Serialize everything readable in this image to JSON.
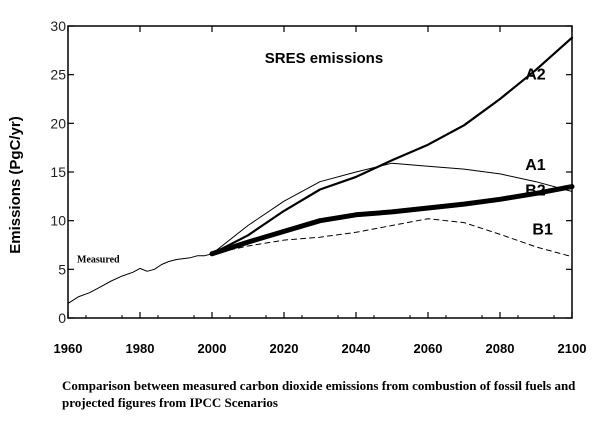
{
  "caption": "Comparison between measured carbon dioxide emissions from combustion of fossil fuels and projected figures from IPCC Scenarios",
  "chart_data": {
    "type": "line",
    "title": "SRES emissions",
    "xlabel": "",
    "ylabel": "Emissions (PgC/yr)",
    "xlim": [
      1960,
      2100
    ],
    "ylim": [
      0,
      30
    ],
    "x_ticks": [
      1960,
      1980,
      2000,
      2020,
      2040,
      2060,
      2080,
      2100
    ],
    "y_ticks": [
      0,
      5,
      10,
      15,
      20,
      25,
      30
    ],
    "grid": false,
    "legend": "none",
    "annotation": "Measured",
    "series": [
      {
        "name": "Measured",
        "style": "solid-thin",
        "x": [
          1960,
          1963,
          1966,
          1969,
          1972,
          1975,
          1978,
          1980,
          1982,
          1984,
          1986,
          1988,
          1990,
          1992,
          1994,
          1996,
          1998,
          2000
        ],
        "y": [
          1.5,
          2.2,
          2.6,
          3.2,
          3.8,
          4.3,
          4.7,
          5.1,
          4.8,
          5.0,
          5.5,
          5.8,
          6.0,
          6.1,
          6.2,
          6.4,
          6.4,
          6.6
        ]
      },
      {
        "name": "A2",
        "style": "solid-medium",
        "x": [
          2000,
          2010,
          2020,
          2030,
          2040,
          2050,
          2060,
          2070,
          2080,
          2090,
          2100
        ],
        "y": [
          6.6,
          8.5,
          11.0,
          13.2,
          14.5,
          16.2,
          17.8,
          19.8,
          22.5,
          25.5,
          28.8
        ]
      },
      {
        "name": "A1",
        "style": "solid-thin",
        "x": [
          2000,
          2010,
          2020,
          2030,
          2040,
          2050,
          2060,
          2070,
          2080,
          2090,
          2100
        ],
        "y": [
          6.6,
          9.5,
          12.0,
          14.0,
          15.0,
          15.9,
          15.6,
          15.3,
          14.8,
          14.0,
          13.0
        ]
      },
      {
        "name": "B2",
        "style": "solid-thick",
        "x": [
          2000,
          2010,
          2020,
          2030,
          2040,
          2050,
          2060,
          2070,
          2080,
          2090,
          2100
        ],
        "y": [
          6.6,
          7.8,
          8.9,
          10.0,
          10.6,
          10.9,
          11.3,
          11.7,
          12.2,
          12.8,
          13.5
        ]
      },
      {
        "name": "B1",
        "style": "dashed",
        "x": [
          2000,
          2010,
          2020,
          2030,
          2040,
          2050,
          2060,
          2070,
          2080,
          2090,
          2100
        ],
        "y": [
          6.6,
          7.4,
          8.0,
          8.3,
          8.8,
          9.5,
          10.2,
          9.8,
          8.6,
          7.3,
          6.3
        ]
      }
    ]
  }
}
